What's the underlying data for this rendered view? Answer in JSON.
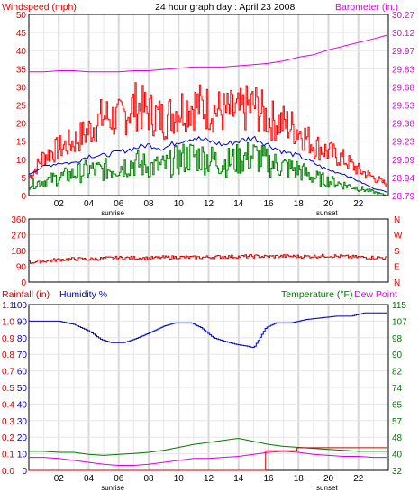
{
  "chart_data": [
    {
      "type": "line",
      "title": "24 hour graph day : April 23 2008",
      "left_axis_label": "Windspeed (mph)",
      "right_axis_label": "Barometer (in.)",
      "left_ticks": [
        "0",
        "5",
        "10",
        "15",
        "20",
        "25",
        "30",
        "35",
        "40",
        "45",
        "50"
      ],
      "left_range": [
        0,
        50
      ],
      "right_ticks": [
        "28.79",
        "28.94",
        "29.09",
        "29.23",
        "29.38",
        "29.53",
        "29.68",
        "29.83",
        "29.97",
        "30.12",
        "30.27"
      ],
      "right_range": [
        28.79,
        30.27
      ],
      "x_ticks": [
        "02",
        "04",
        "06",
        "08",
        "10",
        "12",
        "14",
        "16",
        "18",
        "20",
        "22"
      ],
      "x_range": [
        0,
        24
      ],
      "sunrise_label": "sunrise",
      "sunset_label": "sunset",
      "sunrise_hour": 5.6,
      "sunset_hour": 19.9,
      "grid": true,
      "series": [
        {
          "key": "gust",
          "color": "#ff0000",
          "x": [
            0,
            1,
            2,
            3,
            4,
            5,
            6,
            7,
            8,
            9,
            10,
            11,
            12,
            13,
            14,
            15,
            16,
            17,
            18,
            19,
            20,
            21,
            22,
            23,
            23.9
          ],
          "values": [
            5,
            11,
            13,
            15,
            18,
            22,
            21,
            25,
            23,
            21,
            24,
            25,
            24,
            23,
            23,
            25,
            21,
            20,
            18,
            14,
            12,
            10,
            7,
            5,
            3
          ]
        },
        {
          "key": "avg_wind",
          "color": "#0000cc",
          "x": [
            0,
            1,
            2,
            3,
            4,
            5,
            6,
            7,
            8,
            9,
            10,
            11,
            12,
            13,
            14,
            15,
            16,
            17,
            18,
            19,
            20,
            21,
            22,
            23,
            23.9
          ],
          "values": [
            6,
            8,
            9,
            9,
            11,
            11,
            12,
            13,
            14,
            13,
            15,
            16,
            15,
            14,
            15,
            16,
            14,
            12,
            11,
            9,
            7,
            6,
            4,
            2,
            1
          ]
        },
        {
          "key": "wind",
          "color": "#008000",
          "x": [
            0,
            1,
            2,
            3,
            4,
            5,
            6,
            7,
            8,
            9,
            10,
            11,
            12,
            13,
            14,
            15,
            16,
            17,
            18,
            19,
            20,
            21,
            22,
            23,
            23.9
          ],
          "values": [
            3,
            4,
            5,
            6,
            7,
            7,
            8,
            9,
            8,
            8,
            10,
            11,
            10,
            9,
            10,
            11,
            9,
            8,
            7,
            5,
            4,
            3,
            2,
            1,
            0
          ]
        },
        {
          "key": "barometer",
          "color": "#dd00dd",
          "x": [
            0,
            1,
            2,
            3,
            4,
            5,
            6,
            7,
            8,
            9,
            10,
            11,
            12,
            13,
            14,
            15,
            16,
            17,
            18,
            19,
            20,
            21,
            22,
            23,
            23.9
          ],
          "values": [
            29.8,
            29.8,
            29.81,
            29.81,
            29.8,
            29.8,
            29.8,
            29.81,
            29.81,
            29.82,
            29.83,
            29.84,
            29.84,
            29.84,
            29.85,
            29.86,
            29.87,
            29.89,
            29.92,
            29.94,
            29.98,
            30.01,
            30.04,
            30.07,
            30.1
          ]
        }
      ]
    },
    {
      "type": "scatter",
      "left_ticks": [
        "0",
        "90",
        "180",
        "270",
        "360"
      ],
      "left_range": [
        0,
        360
      ],
      "right_letters": [
        "N",
        "W",
        "S",
        "E",
        "N"
      ],
      "x_range": [
        0,
        24
      ],
      "grid": true,
      "series": [
        {
          "key": "wind_direction",
          "color": "#dd0000",
          "x": [
            0,
            1,
            2,
            3,
            4,
            5,
            6,
            7,
            8,
            9,
            10,
            11,
            12,
            13,
            14,
            15,
            16,
            17,
            18,
            19,
            20,
            21,
            22,
            23,
            23.9
          ],
          "values": [
            112,
            120,
            128,
            132,
            130,
            135,
            138,
            138,
            136,
            140,
            142,
            140,
            142,
            145,
            145,
            147,
            145,
            148,
            146,
            147,
            150,
            145,
            142,
            140,
            138
          ]
        }
      ]
    },
    {
      "type": "line",
      "left_axis_label_1": "Rainfall (in)",
      "left_axis_label_2": "Humidity %",
      "right_axis_label_1": "Temperature (°F)",
      "right_axis_label_2": "Dew Point",
      "humidity_ticks": [
        "0",
        "10",
        "20",
        "30",
        "40",
        "50",
        "60",
        "70",
        "80",
        "90",
        "100"
      ],
      "rain_ticks": [
        "0.0",
        "0.1",
        "0.2",
        "0.3",
        "0.4",
        "0.5",
        "0.7",
        "0.8",
        "0.9",
        "1.0",
        "1.1"
      ],
      "humidity_range": [
        0,
        100
      ],
      "rain_range": [
        0,
        1.1
      ],
      "temp_ticks": [
        "32",
        "40",
        "48",
        "57",
        "65",
        "74",
        "82",
        "90",
        "98",
        "107",
        "115"
      ],
      "temp_range": [
        32,
        115
      ],
      "x_ticks": [
        "02",
        "04",
        "06",
        "08",
        "10",
        "12",
        "14",
        "16",
        "18",
        "20",
        "22"
      ],
      "x_range": [
        0,
        24
      ],
      "sunrise_label": "sunrise",
      "sunset_label": "sunset",
      "sunrise_hour": 5.6,
      "sunset_hour": 19.9,
      "grid": true,
      "series": [
        {
          "key": "humidity",
          "color": "#0000bb",
          "x": [
            0,
            1,
            2,
            3,
            4,
            4.8,
            5.5,
            6.3,
            7,
            7.8,
            8.3,
            9,
            9.8,
            10.8,
            11.5,
            12.3,
            13,
            13.8,
            14.5,
            15,
            15.4,
            15.8,
            16.5,
            17.5,
            18.5,
            19.5,
            20.5,
            21.5,
            22.4,
            23.9
          ],
          "values": [
            90,
            90,
            90,
            88,
            84,
            79,
            77,
            77,
            79,
            82,
            84,
            87,
            89,
            89,
            86,
            80,
            78,
            76,
            75,
            74,
            80,
            86,
            89,
            89,
            91,
            92,
            93,
            93,
            95,
            95
          ]
        },
        {
          "key": "temperature",
          "color": "#007700",
          "x": [
            0,
            1,
            2,
            3,
            4,
            5,
            6,
            7,
            8,
            9,
            10,
            11,
            12,
            13,
            14,
            15,
            16,
            17,
            18,
            19,
            20,
            21,
            22,
            23,
            23.9
          ],
          "values": [
            41.5,
            41.5,
            41,
            41,
            40,
            39.5,
            40,
            40.5,
            41,
            42,
            43.5,
            45,
            46,
            47,
            48,
            46.5,
            45,
            44,
            43.5,
            43,
            42.5,
            42,
            41.5,
            41.5,
            41.5
          ]
        },
        {
          "key": "dew_point",
          "color": "#dd00dd",
          "x": [
            0,
            1,
            2,
            3,
            4,
            5,
            6,
            7,
            8,
            9,
            10,
            11,
            12,
            13,
            14,
            15,
            16,
            17,
            18,
            19,
            20,
            21,
            22,
            23,
            23.9
          ],
          "values": [
            38.5,
            38.5,
            38,
            37,
            36,
            35,
            34.5,
            34.5,
            35,
            36,
            37,
            38,
            38,
            38.5,
            39,
            40,
            41,
            41.5,
            41,
            40,
            39.5,
            39,
            39,
            38.5,
            38.5
          ]
        },
        {
          "key": "rainfall",
          "color": "#cc0000",
          "x": [
            0,
            15.8,
            15.81,
            17.9,
            17.91,
            23.9
          ],
          "values": [
            0,
            0,
            0.13,
            0.13,
            0.15,
            0.15
          ]
        }
      ]
    }
  ]
}
